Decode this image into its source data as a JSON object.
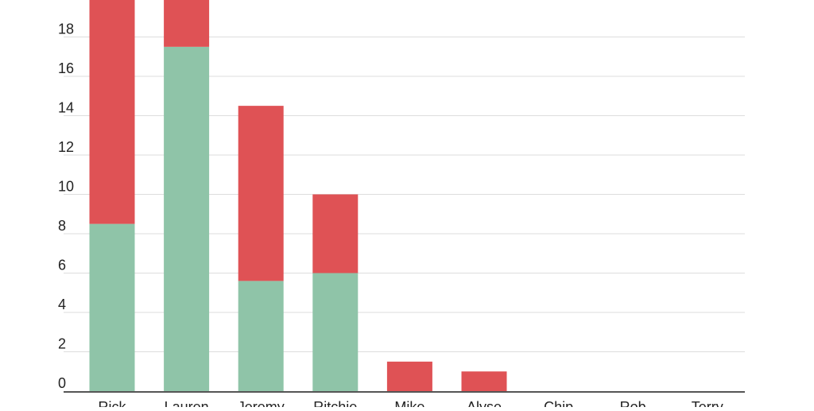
{
  "chart_data": {
    "type": "bar",
    "stacked": true,
    "categories": [
      "Rick",
      "Lauren",
      "Jeremy",
      "Ritchie",
      "Mike",
      "Alyse",
      "Chip",
      "Rob",
      "Terry"
    ],
    "series": [
      {
        "values": [
          8.5,
          17.5,
          5.6,
          6.0,
          0,
          0,
          0,
          0,
          0
        ],
        "color": "#8fc4a8"
      },
      {
        "values": [
          12.0,
          3.0,
          8.9,
          4.0,
          1.5,
          1.0,
          0,
          0,
          0
        ],
        "color": "#df5255"
      }
    ],
    "y_ticks": [
      "0",
      "2",
      "4",
      "6",
      "8",
      "10",
      "12",
      "14",
      "16",
      "18"
    ],
    "ylim": [
      0,
      19.85
    ],
    "grid": true,
    "axis_color": "#555555",
    "grid_color": "#dddddd",
    "tick_label_color": "#222222"
  }
}
